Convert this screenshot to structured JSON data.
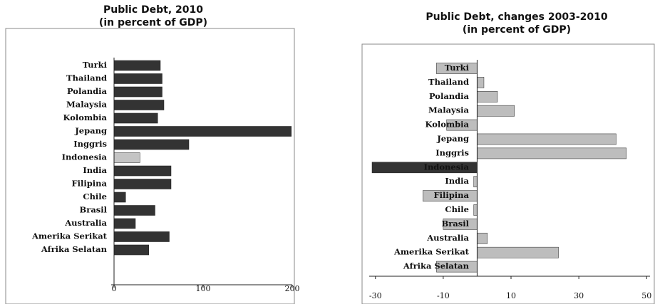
{
  "chart_data": [
    {
      "type": "bar",
      "orientation": "horizontal",
      "title": "Public Debt, 2010",
      "subtitle": "(in percent of GDP)",
      "categories": [
        "Turki",
        "Thailand",
        "Polandia",
        "Malaysia",
        "Kolombia",
        "Jepang",
        "Inggris",
        "Indonesia",
        "India",
        "Filipina",
        "Chile",
        "Brasil",
        "Australia",
        "Amerika Serikat",
        "Afrika Selatan"
      ],
      "values": [
        52,
        54,
        54,
        56,
        49,
        199,
        84,
        29,
        64,
        64,
        13,
        46,
        24,
        62,
        39
      ],
      "colors": [
        "#333333",
        "#333333",
        "#333333",
        "#333333",
        "#333333",
        "#333333",
        "#333333",
        "#c4c4c4",
        "#333333",
        "#333333",
        "#333333",
        "#333333",
        "#333333",
        "#333333",
        "#333333"
      ],
      "xlim": [
        0,
        200
      ],
      "xticks": [
        0,
        100,
        200
      ],
      "grid": false
    },
    {
      "type": "bar",
      "orientation": "horizontal",
      "title": "Public Debt, changes 2003-2010",
      "subtitle": "(in percent of GDP)",
      "categories": [
        "Turki",
        "Thailand",
        "Polandia",
        "Malaysia",
        "Kolombia",
        "Jepang",
        "Inggris",
        "Indonesia",
        "India",
        "Filipina",
        "Chile",
        "Brasil",
        "Australia",
        "Amerika Serikat",
        "Afrika Selatan"
      ],
      "values": [
        -12,
        2,
        6,
        11,
        -9,
        41,
        44,
        -31,
        -1,
        -16,
        -1,
        -10,
        3,
        24,
        -12
      ],
      "colors": [
        "#bdbdbd",
        "#bdbdbd",
        "#bdbdbd",
        "#bdbdbd",
        "#bdbdbd",
        "#bdbdbd",
        "#bdbdbd",
        "#333333",
        "#bdbdbd",
        "#bdbdbd",
        "#bdbdbd",
        "#bdbdbd",
        "#bdbdbd",
        "#bdbdbd",
        "#bdbdbd"
      ],
      "xlim": [
        -31,
        51
      ],
      "xticks": [
        -30,
        -10,
        10,
        30,
        50
      ],
      "grid": false
    }
  ]
}
